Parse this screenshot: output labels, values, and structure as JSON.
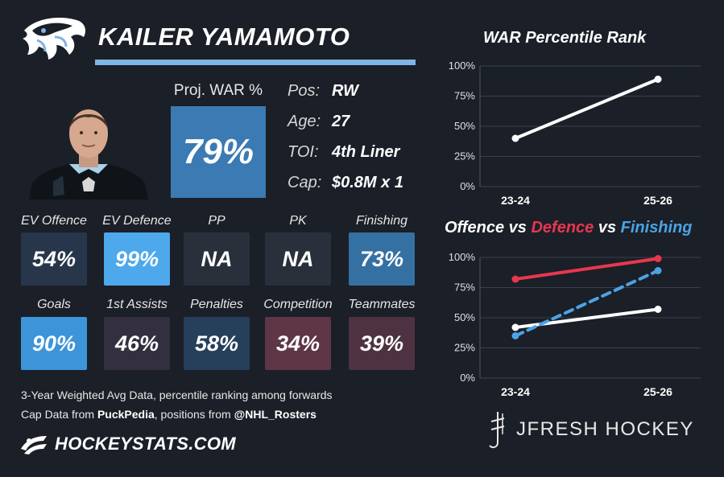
{
  "header": {
    "player_name": "KAILER YAMAMOTO"
  },
  "proj_war": {
    "label": "Proj. WAR %",
    "value": "79%",
    "color": "#3b7ab3"
  },
  "info": [
    {
      "key": "Pos:",
      "value": "RW"
    },
    {
      "key": "Age:",
      "value": "27"
    },
    {
      "key": "TOI:",
      "value": "4th Liner"
    },
    {
      "key": "Cap:",
      "value": "$0.8M x 1"
    }
  ],
  "stats_row1": [
    {
      "label": "EV Offence",
      "value": "54%",
      "color": "#27364a"
    },
    {
      "label": "EV Defence",
      "value": "99%",
      "color": "#4da8ec"
    },
    {
      "label": "PP",
      "value": "NA",
      "color": "#2a303b"
    },
    {
      "label": "PK",
      "value": "NA",
      "color": "#2a303b"
    },
    {
      "label": "Finishing",
      "value": "73%",
      "color": "#3570a2"
    }
  ],
  "stats_row2": [
    {
      "label": "Goals",
      "value": "90%",
      "color": "#3d94d9"
    },
    {
      "label": "1st Assists",
      "value": "46%",
      "color": "#332f40"
    },
    {
      "label": "Penalties",
      "value": "58%",
      "color": "#263f5a"
    },
    {
      "label": "Competition",
      "value": "34%",
      "color": "#5e3646"
    },
    {
      "label": "Teammates",
      "value": "39%",
      "color": "#4e3242"
    }
  ],
  "footnotes": {
    "line1": "3-Year Weighted Avg Data, percentile ranking among forwards",
    "line2_prefix": "Cap Data from ",
    "line2_source1": "PuckPedia",
    "line2_mid": ", positions from ",
    "line2_source2": "@NHL_Rosters"
  },
  "branding": {
    "hockeystats": "HOCKEYSTATS.COM",
    "jfresh": "JFRESH HOCKEY"
  },
  "chart_titles": {
    "war": "WAR Percentile Rank",
    "ovdf_part1": "Offence",
    "ovdf_vs1": " vs ",
    "ovdf_part2": "Defence",
    "ovdf_vs2": " vs ",
    "ovdf_part3": "Finishing"
  },
  "chart_data": [
    {
      "type": "line",
      "title": "WAR Percentile Rank",
      "x": [
        "23-24",
        "25-26"
      ],
      "ylim": [
        0,
        100
      ],
      "yticks": [
        "0%",
        "25%",
        "50%",
        "75%",
        "100%"
      ],
      "grid": true,
      "series": [
        {
          "values": [
            40,
            89
          ],
          "color": "#ffffff",
          "style": "solid"
        }
      ]
    },
    {
      "type": "line",
      "title": "Offence vs Defence vs Finishing",
      "x": [
        "23-24",
        "25-26"
      ],
      "ylim": [
        0,
        100
      ],
      "yticks": [
        "0%",
        "25%",
        "50%",
        "75%",
        "100%"
      ],
      "grid": true,
      "series": [
        {
          "name": "Offence",
          "values": [
            42,
            57
          ],
          "color": "#ffffff",
          "style": "solid"
        },
        {
          "name": "Defence",
          "values": [
            82,
            99
          ],
          "color": "#e8374f",
          "style": "solid"
        },
        {
          "name": "Finishing",
          "values": [
            35,
            89
          ],
          "color": "#4aa3e6",
          "style": "dashed"
        }
      ]
    }
  ],
  "colors": {
    "background": "#1b1f27",
    "accent_blue": "#7fb4e6",
    "defence_red": "#e8374f",
    "finishing_blue": "#4aa3e6"
  },
  "icons": {
    "team_logo": "kraken-icon",
    "hockeystats_logo": "hockeystats-icon",
    "jfresh_logo": "jfresh-icon"
  }
}
